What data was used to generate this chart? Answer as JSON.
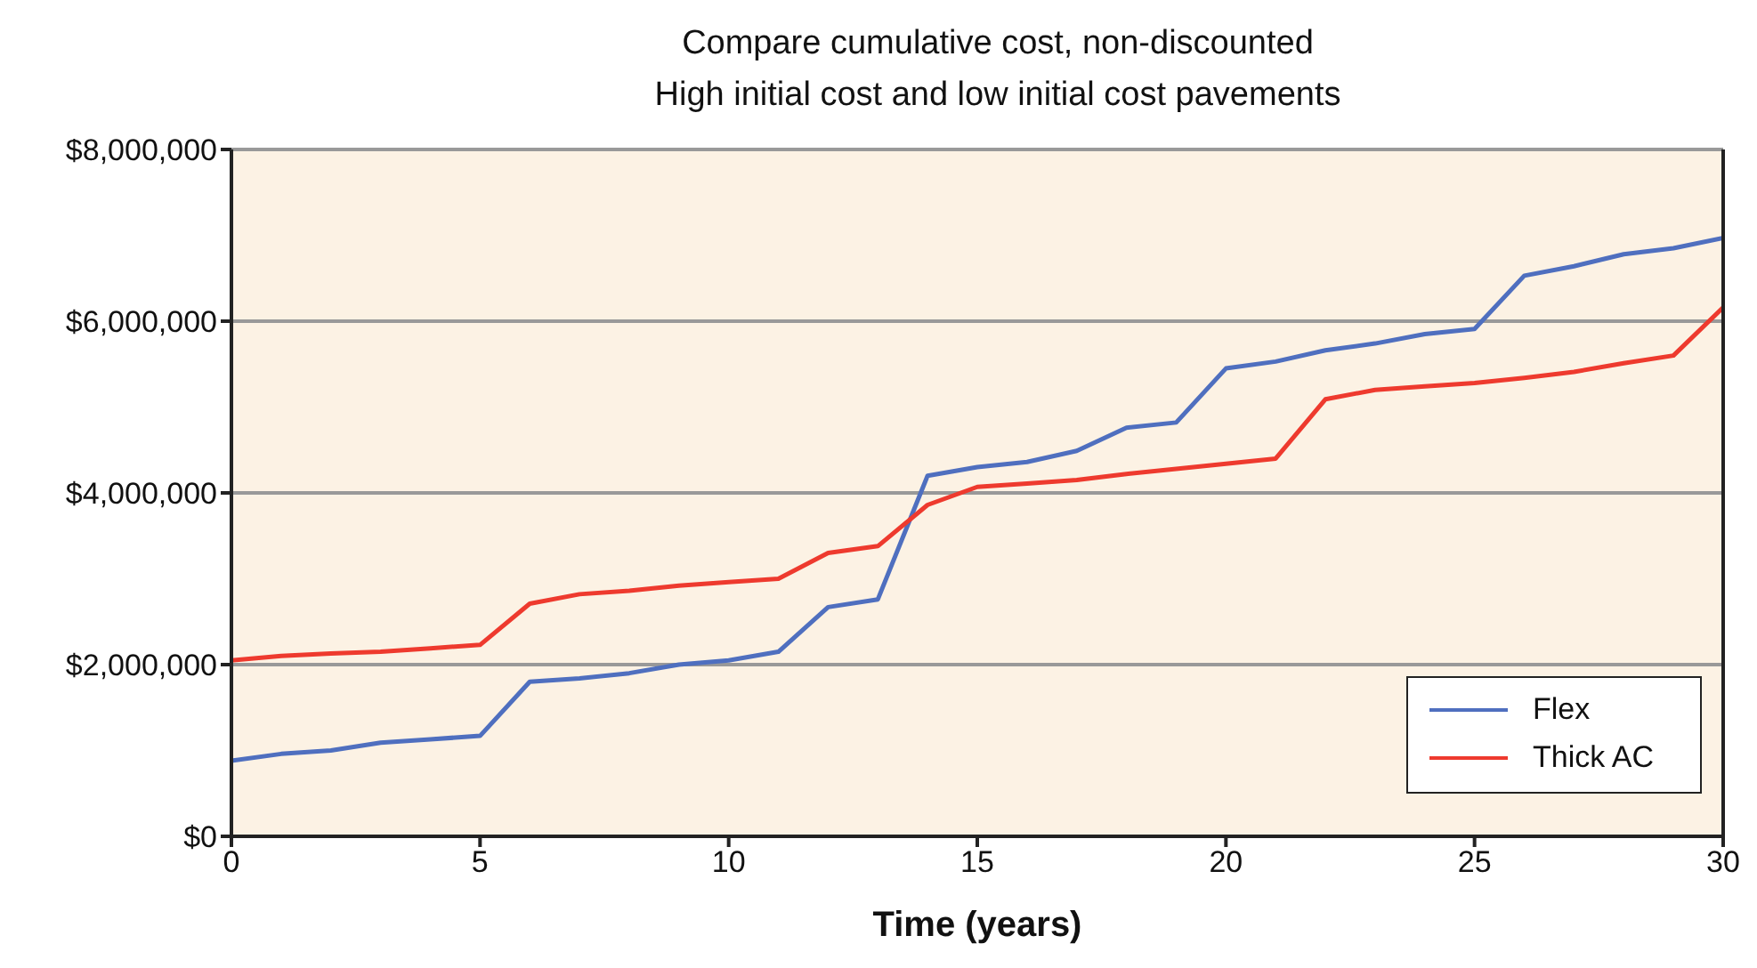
{
  "chart_data": {
    "type": "line",
    "title": "Compare cumulative cost, non-discounted",
    "subtitle": "High initial cost and low initial cost pavements",
    "xlabel": "Time (years)",
    "x": [
      0,
      1,
      2,
      3,
      4,
      5,
      6,
      7,
      8,
      9,
      10,
      11,
      12,
      13,
      14,
      15,
      16,
      17,
      18,
      19,
      20,
      21,
      22,
      23,
      24,
      25,
      26,
      27,
      28,
      29,
      30
    ],
    "series": [
      {
        "name": "Flex",
        "color": "#4f6fbf",
        "values": [
          880000,
          960000,
          1000000,
          1090000,
          1130000,
          1170000,
          1800000,
          1840000,
          1900000,
          2000000,
          2050000,
          2150000,
          2670000,
          2760000,
          4200000,
          4300000,
          4360000,
          4490000,
          4760000,
          4820000,
          5450000,
          5530000,
          5660000,
          5740000,
          5850000,
          5910000,
          6530000,
          6640000,
          6780000,
          6850000,
          6970000
        ]
      },
      {
        "name": "Thick AC",
        "color": "#ee3a2e",
        "values": [
          2050000,
          2100000,
          2130000,
          2150000,
          2190000,
          2230000,
          2710000,
          2820000,
          2860000,
          2920000,
          2960000,
          3000000,
          3300000,
          3380000,
          3860000,
          4070000,
          4110000,
          4150000,
          4220000,
          4280000,
          4340000,
          4400000,
          5090000,
          5200000,
          5240000,
          5280000,
          5340000,
          5410000,
          5510000,
          5600000,
          6160000
        ]
      }
    ],
    "xlim": [
      0,
      30
    ],
    "xticks": [
      0,
      5,
      10,
      15,
      20,
      25,
      30
    ],
    "ylim": [
      0,
      8000000
    ],
    "yticks": [
      {
        "value": 0,
        "label": "$0"
      },
      {
        "value": 2000000,
        "label": "$2,000,000"
      },
      {
        "value": 4000000,
        "label": "$4,000,000"
      },
      {
        "value": 6000000,
        "label": "$6,000,000"
      },
      {
        "value": 8000000,
        "label": "$8,000,000"
      }
    ],
    "grid": "y",
    "legend": "bottom right",
    "marker": "none",
    "line_style": "solid"
  }
}
